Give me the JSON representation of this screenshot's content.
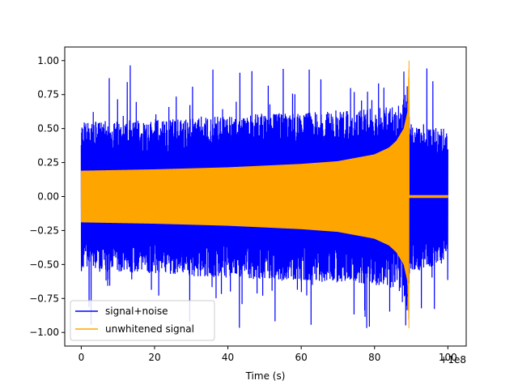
{
  "chart_data": {
    "type": "line",
    "title": "",
    "xlabel": "Time (s)",
    "ylabel": "",
    "x_offset_label": "+1e8",
    "xlim": [
      -4.5,
      105
    ],
    "ylim": [
      -1.1,
      1.1
    ],
    "x_ticks": [
      0,
      20,
      40,
      60,
      80,
      100
    ],
    "x_tick_labels": [
      "0",
      "20",
      "40",
      "60",
      "80",
      "100"
    ],
    "y_ticks": [
      -1.0,
      -0.75,
      -0.5,
      -0.25,
      0.0,
      0.25,
      0.5,
      0.75,
      1.0
    ],
    "y_tick_labels": [
      "−1.00",
      "−0.75",
      "−0.50",
      "−0.25",
      "0.00",
      "0.25",
      "0.50",
      "0.75",
      "1.00"
    ],
    "grid": false,
    "legend_position": "lower-left",
    "series": [
      {
        "name": "signal+noise",
        "color": "#0000ff",
        "x_range": [
          0,
          100
        ],
        "description_envelope": {
          "t": [
            0,
            20,
            40,
            60,
            80,
            85,
            88,
            89.3,
            89.6,
            100
          ],
          "upper_typical": [
            0.55,
            0.57,
            0.6,
            0.62,
            0.65,
            0.68,
            0.72,
            0.9,
            0.55,
            0.5
          ],
          "lower_typical": [
            -0.55,
            -0.57,
            -0.6,
            -0.62,
            -0.65,
            -0.68,
            -0.72,
            -0.9,
            -0.55,
            -0.5
          ],
          "peak_max": 0.98,
          "peak_min": -0.97
        }
      },
      {
        "name": "unwhitened signal",
        "color": "#ffa500",
        "x_range": [
          0,
          100
        ],
        "chirp_end": 89.4,
        "envelope": {
          "t": [
            0,
            20,
            40,
            60,
            70,
            80,
            84,
            86,
            88,
            89,
            89.4
          ],
          "amp": [
            0.19,
            0.2,
            0.215,
            0.24,
            0.26,
            0.31,
            0.36,
            0.41,
            0.5,
            0.62,
            1.0
          ]
        },
        "post_merger_amp": 0.01
      }
    ]
  }
}
